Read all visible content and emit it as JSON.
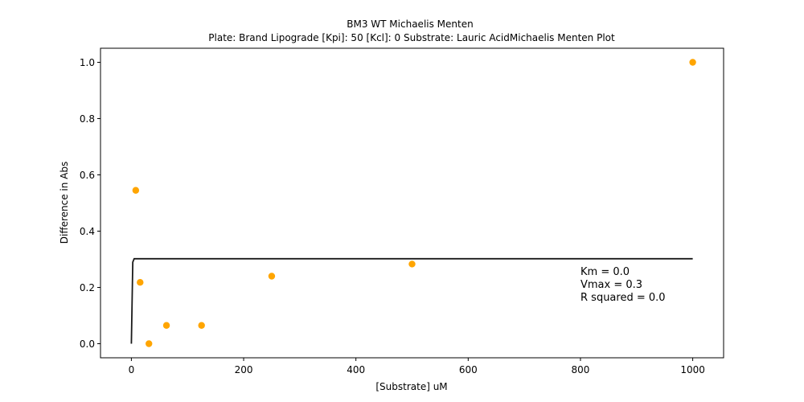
{
  "chart_data": {
    "type": "scatter",
    "title": "BM3 WT Michaelis Menten",
    "subtitle": "Plate: Brand Lipograde  [Kpi]: 50  [Kcl]: 0  Substrate: Lauric AcidMichaelis Menten Plot",
    "xlabel": "[Substrate] uM",
    "ylabel": "Difference in Abs",
    "xlim": [
      -55,
      1055
    ],
    "ylim": [
      -0.05,
      1.05
    ],
    "xticks": [
      0,
      200,
      400,
      600,
      800,
      1000
    ],
    "yticks": [
      0.0,
      0.2,
      0.4,
      0.6,
      0.8,
      1.0
    ],
    "grid": false,
    "series": [
      {
        "kind": "points",
        "color": "#ffa500",
        "x": [
          7.8,
          15.6,
          31.25,
          62.5,
          125,
          250,
          500,
          1000
        ],
        "y": [
          0.545,
          0.218,
          0.0,
          0.065,
          0.065,
          0.24,
          0.283,
          1.0
        ]
      },
      {
        "kind": "fit-line",
        "color": "#1a1a1a",
        "x": [
          0,
          2.5,
          5,
          1000
        ],
        "y": [
          0.0,
          0.29,
          0.302,
          0.302
        ]
      }
    ],
    "annotations": [
      "Km = 0.0",
      "Vmax = 0.3",
      "R squared = 0.0"
    ]
  }
}
